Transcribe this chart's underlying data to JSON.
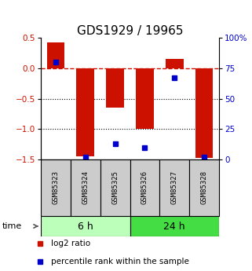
{
  "title": "GDS1929 / 19965",
  "samples": [
    "GSM85323",
    "GSM85324",
    "GSM85325",
    "GSM85326",
    "GSM85327",
    "GSM85328"
  ],
  "log2_ratio": [
    0.42,
    -1.45,
    -0.65,
    -1.0,
    0.15,
    -1.48
  ],
  "percentile_rank": [
    80,
    2,
    13,
    10,
    67,
    2
  ],
  "groups": [
    {
      "label": "6 h",
      "indices": [
        0,
        1,
        2
      ],
      "color": "#bbffbb"
    },
    {
      "label": "24 h",
      "indices": [
        3,
        4,
        5
      ],
      "color": "#44dd44"
    }
  ],
  "bar_color": "#cc1100",
  "dot_color": "#0000cc",
  "ylim_left": [
    -1.5,
    0.5
  ],
  "ylim_right": [
    0,
    100
  ],
  "yticks_left": [
    -1.5,
    -1.0,
    -0.5,
    0.0,
    0.5
  ],
  "yticks_right": [
    0,
    25,
    50,
    75,
    100
  ],
  "ytick_labels_right": [
    "0",
    "25",
    "50",
    "75",
    "100%"
  ],
  "hline_y": 0.0,
  "dotted_lines": [
    -0.5,
    -1.0
  ],
  "bar_width": 0.6,
  "legend_items": [
    "log2 ratio",
    "percentile rank within the sample"
  ],
  "title_fontsize": 11,
  "tick_fontsize": 7.5,
  "sample_fontsize": 6.5,
  "group_fontsize": 9,
  "legend_fontsize": 7.5,
  "time_fontsize": 8
}
